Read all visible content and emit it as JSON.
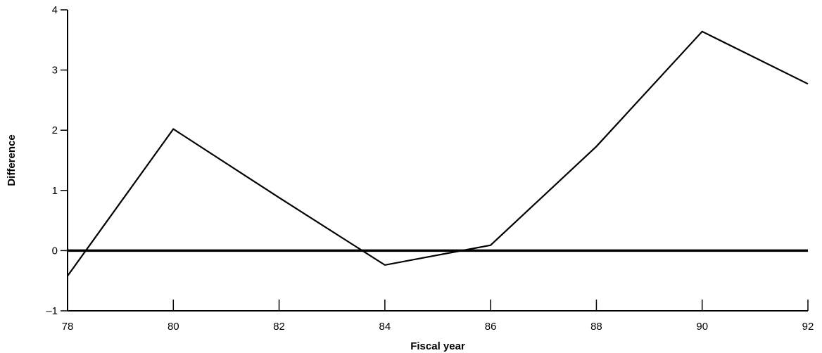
{
  "chart_data": {
    "type": "line",
    "title": "",
    "xlabel": "Fiscal year",
    "ylabel": "Difference",
    "xlim": [
      78,
      92
    ],
    "ylim": [
      -1,
      4
    ],
    "x_ticks": [
      78,
      80,
      82,
      84,
      86,
      88,
      90,
      92
    ],
    "y_ticks": [
      -1,
      0,
      1,
      2,
      3,
      4
    ],
    "x_tick_labels": [
      "78",
      "80",
      "82",
      "84",
      "86",
      "88",
      "90",
      "92"
    ],
    "y_tick_labels": [
      "–1",
      "0",
      "1",
      "2",
      "3",
      "4"
    ],
    "grid": false,
    "reference_line": {
      "y": 0
    },
    "series": [
      {
        "x": [
          78,
          80,
          82,
          84,
          86,
          88,
          90,
          92
        ],
        "values": [
          -0.42,
          2.02,
          0.88,
          -0.24,
          0.09,
          1.73,
          3.64,
          2.77
        ]
      }
    ],
    "colors": {
      "line": "#000000",
      "axis": "#000000"
    }
  }
}
